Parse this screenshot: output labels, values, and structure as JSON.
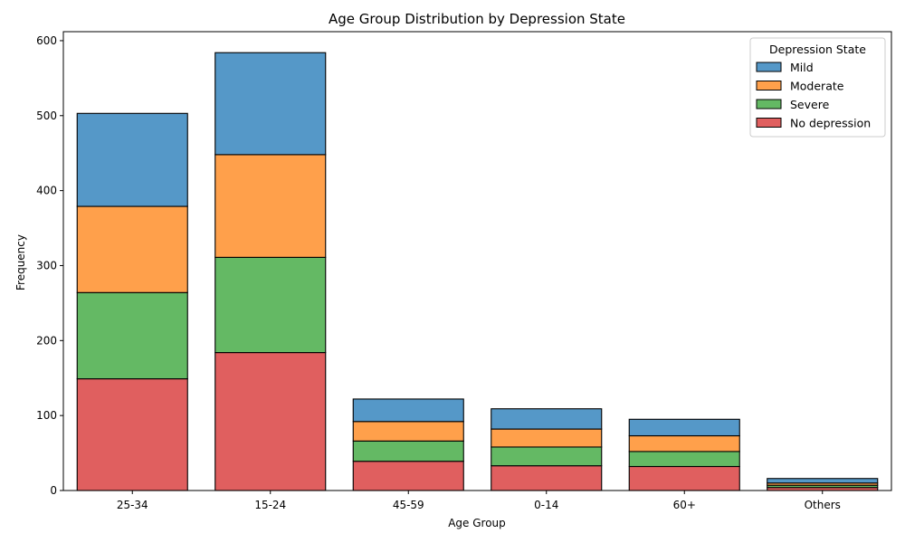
{
  "chart_data": {
    "type": "bar",
    "stacked": true,
    "title": "Age Group Distribution by Depression State",
    "xlabel": "Age Group",
    "ylabel": "Frequency",
    "ylim": [
      0,
      612
    ],
    "yticks": [
      0,
      100,
      200,
      300,
      400,
      500,
      600
    ],
    "categories": [
      "25-34",
      "15-24",
      "45-59",
      "0-14",
      "60+",
      "Others"
    ],
    "series": [
      {
        "name": "No depression",
        "color": "#e05f5f",
        "values": [
          149,
          184,
          39,
          33,
          32,
          4
        ]
      },
      {
        "name": "Severe",
        "color": "#64b964",
        "values": [
          115,
          127,
          27,
          25,
          20,
          3
        ]
      },
      {
        "name": "Moderate",
        "color": "#ffa04b",
        "values": [
          115,
          137,
          26,
          24,
          21,
          3
        ]
      },
      {
        "name": "Mild",
        "color": "#5598c8",
        "values": [
          124,
          136,
          30,
          27,
          22,
          6
        ]
      }
    ],
    "legend": {
      "title": "Depression State",
      "placement": "top-right",
      "order": [
        "Mild",
        "Moderate",
        "Severe",
        "No depression"
      ]
    },
    "grid": false
  }
}
